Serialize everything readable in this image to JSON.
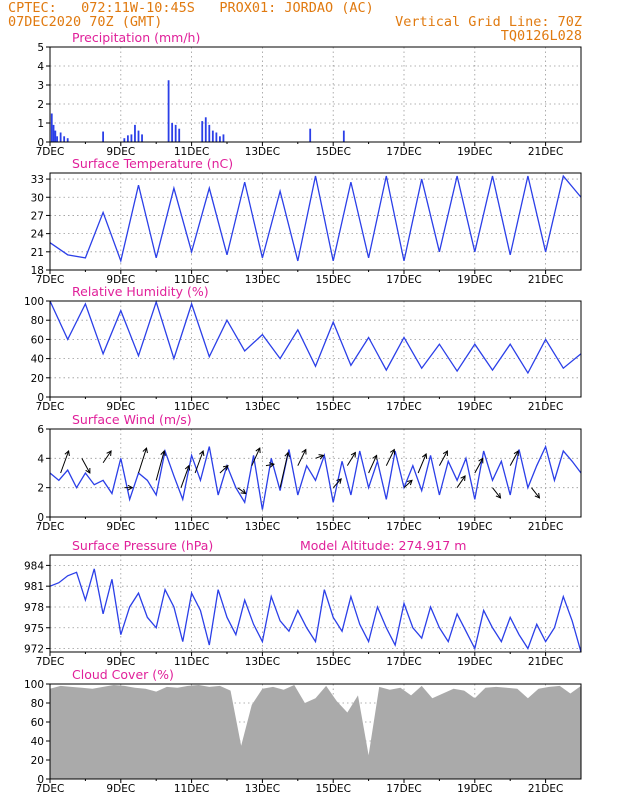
{
  "header": {
    "line1_left": "CPTEC:   072:11W-10:45S   PROX01: JORDAO (AC)",
    "line2_left": "07DEC2020 70Z (GMT)",
    "line2_right": "Vertical Grid Line: 70Z",
    "line3_right": "TQ0126L028"
  },
  "colors": {
    "header": "#e07a10",
    "title": "#e0209a",
    "series": "#2b3fe8",
    "arrows": "#000000",
    "cloud": "#aaaaaa"
  },
  "x_ticks": [
    "7DEC",
    "9DEC",
    "11DEC",
    "13DEC",
    "15DEC",
    "17DEC",
    "19DEC",
    "21DEC"
  ],
  "chart_data": [
    {
      "type": "bar",
      "title": "Precipitation (mm/h)",
      "ylim": [
        0,
        5
      ],
      "yticks": [
        0,
        1,
        2,
        3,
        4,
        5
      ],
      "bars": [
        [
          0.05,
          1.5
        ],
        [
          0.1,
          0.9
        ],
        [
          0.15,
          0.6
        ],
        [
          0.2,
          0.3
        ],
        [
          0.3,
          0.5
        ],
        [
          0.4,
          0.3
        ],
        [
          0.5,
          0.2
        ],
        [
          1.5,
          0.55
        ],
        [
          2.1,
          0.2
        ],
        [
          2.2,
          0.35
        ],
        [
          2.3,
          0.4
        ],
        [
          2.4,
          0.9
        ],
        [
          2.5,
          0.6
        ],
        [
          2.6,
          0.4
        ],
        [
          3.35,
          3.25
        ],
        [
          3.45,
          1.0
        ],
        [
          3.55,
          0.9
        ],
        [
          3.65,
          0.7
        ],
        [
          4.3,
          1.1
        ],
        [
          4.4,
          1.3
        ],
        [
          4.5,
          0.9
        ],
        [
          4.6,
          0.6
        ],
        [
          4.7,
          0.5
        ],
        [
          4.8,
          0.3
        ],
        [
          4.9,
          0.4
        ],
        [
          7.35,
          0.7
        ],
        [
          8.3,
          0.6
        ]
      ]
    },
    {
      "type": "line",
      "title": "Surface Temperature (nC)",
      "ylim": [
        18,
        34
      ],
      "yticks": [
        18,
        21,
        24,
        27,
        30,
        33
      ],
      "x": [
        0,
        0.5,
        1.0,
        1.5,
        2.0,
        2.5,
        3.0,
        3.5,
        4.0,
        4.5,
        5.0,
        5.5,
        6.0,
        6.5,
        7.0,
        7.5,
        8.0,
        8.5,
        9.0,
        9.5,
        10.0,
        10.5,
        11.0,
        11.5,
        12.0,
        12.5,
        13.0,
        13.5,
        14.0,
        14.5,
        15.0
      ],
      "values": [
        22.5,
        20.5,
        20.0,
        27.5,
        19.5,
        32.0,
        20.0,
        31.5,
        21.0,
        31.5,
        20.5,
        32.5,
        20.0,
        31.0,
        19.5,
        33.5,
        19.5,
        32.5,
        20.0,
        33.5,
        19.5,
        33.0,
        21.0,
        33.5,
        21.0,
        33.5,
        20.5,
        33.5,
        21.0,
        33.5,
        30.0
      ]
    },
    {
      "type": "line",
      "title": "Relative Humidity (%)",
      "ylim": [
        0,
        100
      ],
      "yticks": [
        0,
        20,
        40,
        60,
        80,
        100
      ],
      "x": [
        0,
        0.5,
        1.0,
        1.5,
        2.0,
        2.5,
        3.0,
        3.5,
        4.0,
        4.5,
        5.0,
        5.5,
        6.0,
        6.5,
        7.0,
        7.5,
        8.0,
        8.5,
        9.0,
        9.5,
        10.0,
        10.5,
        11.0,
        11.5,
        12.0,
        12.5,
        13.0,
        13.5,
        14.0,
        14.5,
        15.0
      ],
      "values": [
        100,
        60,
        97,
        45,
        90,
        43,
        99,
        40,
        97,
        42,
        80,
        48,
        65,
        40,
        70,
        32,
        78,
        33,
        62,
        28,
        62,
        30,
        55,
        27,
        55,
        28,
        55,
        25,
        60,
        30,
        45
      ]
    },
    {
      "type": "line",
      "title": "Surface Wind (m/s)",
      "ylim": [
        0,
        6
      ],
      "yticks": [
        0,
        2,
        4,
        6
      ],
      "x": [
        0,
        0.25,
        0.5,
        0.75,
        1.0,
        1.25,
        1.5,
        1.75,
        2.0,
        2.25,
        2.5,
        2.75,
        3.0,
        3.25,
        3.5,
        3.75,
        4.0,
        4.25,
        4.5,
        4.75,
        5.0,
        5.25,
        5.5,
        5.75,
        6.0,
        6.25,
        6.5,
        6.75,
        7.0,
        7.25,
        7.5,
        7.75,
        8.0,
        8.25,
        8.5,
        8.75,
        9.0,
        9.25,
        9.5,
        9.75,
        10.0,
        10.25,
        10.5,
        10.75,
        11.0,
        11.25,
        11.5,
        11.75,
        12.0,
        12.25,
        12.5,
        12.75,
        13.0,
        13.25,
        13.5,
        13.75,
        14.0,
        14.25,
        14.5,
        14.75,
        15.0
      ],
      "values": [
        3.0,
        2.5,
        3.2,
        2.0,
        3.0,
        2.2,
        2.5,
        1.6,
        4.0,
        1.2,
        3.0,
        2.5,
        1.5,
        4.5,
        2.8,
        1.2,
        4.2,
        2.5,
        4.8,
        1.5,
        3.5,
        2.0,
        1.0,
        4.2,
        0.5,
        4.0,
        1.8,
        4.6,
        1.5,
        3.5,
        2.5,
        4.2,
        1.0,
        3.8,
        1.5,
        4.5,
        2.0,
        3.8,
        1.2,
        4.5,
        2.0,
        3.5,
        1.8,
        4.2,
        1.5,
        3.8,
        2.5,
        4.0,
        1.2,
        4.5,
        2.5,
        3.8,
        1.5,
        4.6,
        2.0,
        3.5,
        4.8,
        2.5,
        4.5,
        3.8,
        3.0
      ],
      "arrows": [
        [
          0.3,
          3,
          4.5
        ],
        [
          0.9,
          4,
          3
        ],
        [
          1.5,
          3.7,
          4.5
        ],
        [
          2.1,
          2,
          2.0
        ],
        [
          2.5,
          3,
          4.7
        ],
        [
          3.0,
          2.5,
          4.5
        ],
        [
          3.7,
          2,
          3.5
        ],
        [
          4.1,
          3,
          4.5
        ],
        [
          4.8,
          3,
          3.5
        ],
        [
          5.3,
          2,
          1.6
        ],
        [
          5.7,
          3.5,
          4.7
        ],
        [
          6.1,
          3.5,
          3.6
        ],
        [
          6.5,
          2,
          4.4
        ],
        [
          7.0,
          3.5,
          4.6
        ],
        [
          7.5,
          4,
          4.2
        ],
        [
          8.0,
          2,
          2.6
        ],
        [
          8.4,
          3.5,
          4.4
        ],
        [
          9.0,
          3,
          4.2
        ],
        [
          9.5,
          3.5,
          4.6
        ],
        [
          10.0,
          2,
          2.5
        ],
        [
          10.4,
          3,
          4.3
        ],
        [
          11.0,
          3.5,
          4.5
        ],
        [
          11.5,
          2,
          2.8
        ],
        [
          12.0,
          3,
          4.0
        ],
        [
          12.5,
          2,
          1.3
        ],
        [
          13.0,
          3.5,
          4.5
        ],
        [
          13.6,
          2,
          1.3
        ]
      ]
    },
    {
      "type": "line",
      "title": "Surface Pressure (hPa)",
      "subtitle": "Model Altitude: 274.917 m",
      "ylim": [
        971.5,
        985.5
      ],
      "yticks": [
        972,
        975,
        978,
        981,
        984
      ],
      "x": [
        0,
        0.25,
        0.5,
        0.75,
        1.0,
        1.25,
        1.5,
        1.75,
        2.0,
        2.25,
        2.5,
        2.75,
        3.0,
        3.25,
        3.5,
        3.75,
        4.0,
        4.25,
        4.5,
        4.75,
        5.0,
        5.25,
        5.5,
        5.75,
        6.0,
        6.25,
        6.5,
        6.75,
        7.0,
        7.25,
        7.5,
        7.75,
        8.0,
        8.25,
        8.5,
        8.75,
        9.0,
        9.25,
        9.5,
        9.75,
        10.0,
        10.25,
        10.5,
        10.75,
        11.0,
        11.25,
        11.5,
        11.75,
        12.0,
        12.25,
        12.5,
        12.75,
        13.0,
        13.25,
        13.5,
        13.75,
        14.0,
        14.25,
        14.5,
        14.75,
        15.0
      ],
      "values": [
        981.0,
        981.5,
        982.5,
        983.0,
        979.0,
        983.5,
        977.0,
        982.0,
        974.0,
        978.0,
        980.0,
        976.5,
        975.0,
        980.5,
        978.0,
        973.0,
        980.0,
        977.5,
        972.5,
        980.5,
        976.5,
        974.0,
        979.0,
        975.5,
        973.0,
        979.5,
        976.0,
        974.5,
        977.5,
        975.0,
        973.0,
        980.5,
        976.5,
        974.5,
        979.5,
        975.5,
        973.0,
        978.0,
        975.0,
        972.5,
        978.5,
        975.0,
        973.5,
        978.0,
        975.0,
        973.0,
        977.0,
        974.5,
        972.0,
        977.5,
        975.0,
        973.0,
        976.5,
        974.0,
        972.0,
        975.5,
        973.0,
        975.0,
        979.5,
        976.0,
        971.5
      ]
    },
    {
      "type": "area",
      "title": "Cloud Cover (%)",
      "ylim": [
        0,
        100
      ],
      "yticks": [
        0,
        20,
        40,
        60,
        80,
        100
      ],
      "x": [
        0,
        0.3,
        0.6,
        0.9,
        1.2,
        1.5,
        1.8,
        2.1,
        2.4,
        2.7,
        3.0,
        3.3,
        3.6,
        3.9,
        4.2,
        4.5,
        4.8,
        5.1,
        5.4,
        5.7,
        6.0,
        6.3,
        6.6,
        6.9,
        7.2,
        7.5,
        7.8,
        8.1,
        8.4,
        8.7,
        9.0,
        9.3,
        9.6,
        9.9,
        10.2,
        10.5,
        10.8,
        11.1,
        11.4,
        11.7,
        12.0,
        12.3,
        12.6,
        12.9,
        13.2,
        13.5,
        13.8,
        14.1,
        14.4,
        14.7,
        15.0
      ],
      "values": [
        95,
        98,
        97,
        96,
        95,
        97,
        99,
        98,
        96,
        95,
        92,
        97,
        96,
        98,
        99,
        97,
        98,
        93,
        35,
        78,
        95,
        97,
        94,
        99,
        80,
        85,
        98,
        82,
        70,
        88,
        25,
        97,
        94,
        96,
        88,
        98,
        85,
        90,
        95,
        93,
        85,
        96,
        97,
        96,
        95,
        85,
        95,
        97,
        98,
        90,
        98
      ]
    }
  ]
}
